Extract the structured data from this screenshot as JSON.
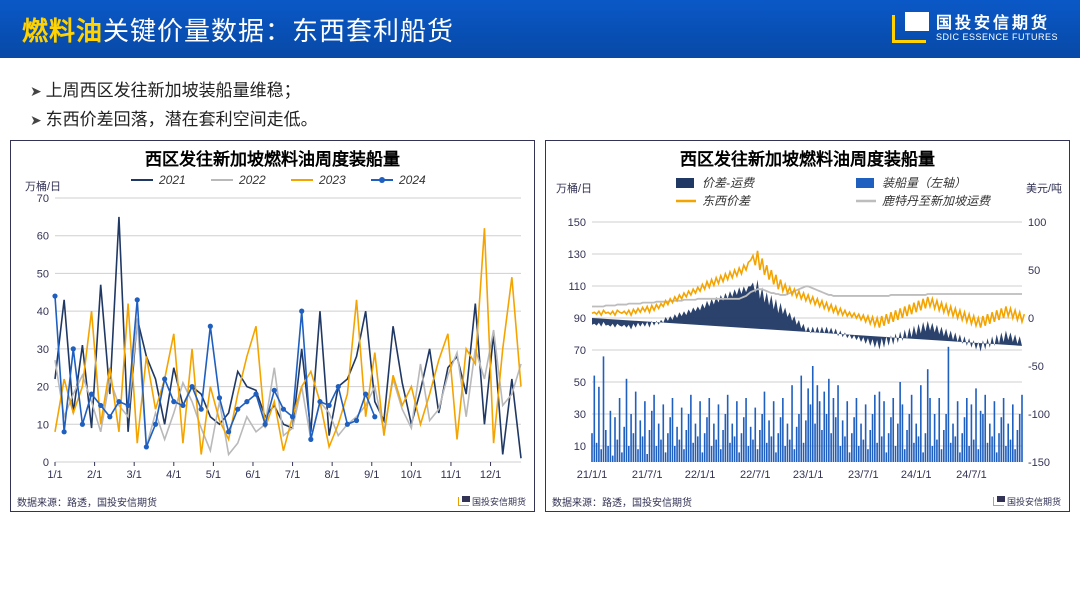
{
  "header": {
    "title_accent": "燃料油",
    "title_rest": "关键价量数据：东西套利船货",
    "logo_cn": "国投安信期货",
    "logo_en": "SDIC ESSENCE FUTURES"
  },
  "bullets": [
    "上周西区发往新加坡装船量维稳；",
    "东西价差回落，潜在套利空间走低。"
  ],
  "chart1": {
    "title": "西区发往新加坡燃料油周度装船量",
    "ylabel": "万桶/日",
    "footer": "数据来源：路透，国投安信期货",
    "wm": "国投安信期货",
    "x_ticks": [
      "1/1",
      "2/1",
      "3/1",
      "4/1",
      "5/1",
      "6/1",
      "7/1",
      "8/1",
      "9/1",
      "10/1",
      "11/1",
      "12/1"
    ],
    "y_min": 0,
    "y_max": 70,
    "y_step": 10,
    "colors": {
      "2021": "#203864",
      "2022": "#b9b9b9",
      "2023": "#f4a400",
      "2024": "#1f5fbf"
    },
    "legend": [
      "2021",
      "2022",
      "2023",
      "2024"
    ],
    "series": {
      "2021": [
        22,
        43,
        13,
        31,
        9,
        47,
        18,
        65,
        8,
        38,
        28,
        22,
        10,
        25,
        15,
        20,
        18,
        12,
        10,
        13,
        24,
        20,
        19,
        12,
        15,
        10,
        9,
        30,
        8,
        40,
        7,
        20,
        22,
        28,
        40,
        16,
        11,
        36,
        21,
        10,
        19,
        30,
        13,
        25,
        28,
        18,
        42,
        10,
        34,
        2,
        22,
        1
      ],
      "2022": [
        27,
        12,
        18,
        23,
        16,
        8,
        22,
        15,
        12,
        38,
        4,
        13,
        6,
        13,
        21,
        16,
        9,
        3,
        16,
        2,
        5,
        12,
        8,
        10,
        25,
        7,
        9,
        20,
        6,
        16,
        13,
        7,
        10,
        12,
        15,
        20,
        8,
        22,
        14,
        9,
        26,
        11,
        14,
        23,
        29,
        12,
        30,
        22,
        35,
        15,
        18,
        26
      ],
      "2023": [
        8,
        22,
        13,
        20,
        40,
        10,
        25,
        8,
        42,
        5,
        28,
        14,
        22,
        34,
        5,
        30,
        2,
        20,
        11,
        6,
        18,
        28,
        36,
        9,
        16,
        3,
        12,
        20,
        24,
        16,
        4,
        10,
        18,
        43,
        12,
        29,
        7,
        23,
        15,
        20,
        10,
        18,
        27,
        34,
        6,
        30,
        26,
        62,
        5,
        30,
        49,
        20
      ],
      "2024": [
        44,
        8,
        30,
        10,
        18,
        15,
        12,
        16,
        15,
        43,
        4,
        10,
        22,
        16,
        15,
        20,
        14,
        36,
        17,
        8,
        14,
        16,
        18,
        10,
        19,
        14,
        12,
        40,
        6,
        16,
        15,
        20,
        10,
        11,
        18,
        12
      ]
    },
    "marker_series": "2024",
    "grid_color": "#cfcfcf",
    "bg": "#ffffff"
  },
  "chart2": {
    "title": "西区发往新加坡燃料油周度装船量",
    "ylabel_left": "万桶/日",
    "ylabel_right": "美元/吨",
    "footer": "数据来源：路透，国投安信期货",
    "wm": "国投安信期货",
    "x_ticks": [
      "21/1/1",
      "21/7/1",
      "22/1/1",
      "22/7/1",
      "23/1/1",
      "23/7/1",
      "24/1/1",
      "24/7/1"
    ],
    "y_left_min": 0,
    "y_left_max": 150,
    "y_left_step": 20,
    "y_left_start": 10,
    "y_right_min": -150,
    "y_right_max": 100,
    "y_right_step": 50,
    "colors": {
      "area": "#203864",
      "bars": "#1f5fbf",
      "spread": "#f4a400",
      "freight": "#bdbdbd"
    },
    "legend": [
      {
        "label": "价差-运费",
        "color": "#203864",
        "type": "area"
      },
      {
        "label": "装船量（左轴）",
        "color": "#1f5fbf",
        "type": "bar"
      },
      {
        "label": "东西价差",
        "color": "#f4a400",
        "type": "line"
      },
      {
        "label": "鹿特丹至新加坡运费",
        "color": "#bdbdbd",
        "type": "line"
      }
    ],
    "bars": [
      18,
      54,
      12,
      47,
      8,
      66,
      20,
      10,
      32,
      4,
      28,
      14,
      40,
      6,
      22,
      52,
      10,
      30,
      18,
      44,
      8,
      26,
      16,
      38,
      5,
      20,
      32,
      42,
      10,
      24,
      14,
      36,
      6,
      18,
      28,
      40,
      10,
      22,
      14,
      34,
      8,
      20,
      30,
      42,
      12,
      24,
      16,
      38,
      6,
      18,
      28,
      40,
      10,
      24,
      14,
      36,
      8,
      20,
      30,
      42,
      12,
      24,
      16,
      38,
      6,
      18,
      28,
      40,
      10,
      22,
      14,
      34,
      8,
      20,
      30,
      44,
      12,
      26,
      16,
      38,
      6,
      18,
      28,
      40,
      10,
      24,
      14,
      48,
      8,
      22,
      30,
      54,
      12,
      26,
      46,
      36,
      60,
      24,
      48,
      38,
      20,
      44,
      30,
      52,
      18,
      40,
      28,
      48,
      10,
      26,
      16,
      38,
      6,
      18,
      28,
      40,
      10,
      24,
      14,
      36,
      8,
      20,
      30,
      42,
      12,
      44,
      16,
      38,
      6,
      18,
      28,
      40,
      10,
      24,
      50,
      36,
      8,
      20,
      30,
      42,
      12,
      24,
      16,
      48,
      6,
      18,
      58,
      40,
      10,
      30,
      14,
      40,
      8,
      20,
      30,
      72,
      12,
      24,
      16,
      38,
      6,
      18,
      28,
      40,
      10,
      36,
      14,
      46,
      8,
      32,
      30,
      42,
      12,
      24,
      16,
      38,
      6,
      18,
      28,
      40,
      10,
      24,
      14,
      36,
      8,
      20,
      30,
      42
    ],
    "freight": [
      12,
      12,
      12,
      12,
      12,
      12,
      13,
      13,
      13,
      13,
      13,
      14,
      14,
      14,
      14,
      14,
      15,
      15,
      15,
      15,
      15,
      15,
      16,
      16,
      16,
      16,
      16,
      16,
      17,
      17,
      17,
      17,
      17,
      17,
      18,
      18,
      18,
      18,
      18,
      18,
      19,
      19,
      19,
      19,
      19,
      19,
      20,
      20,
      20,
      20,
      20,
      20,
      20,
      20,
      20,
      20,
      20,
      20,
      20,
      20,
      20,
      20,
      20,
      20,
      20,
      21,
      22,
      23,
      25,
      27,
      28,
      29,
      30,
      30,
      30,
      29,
      28,
      27,
      26,
      26,
      25,
      25,
      24,
      24,
      24,
      25,
      26,
      27,
      28,
      29,
      30,
      31,
      32,
      33,
      33,
      32,
      31,
      30,
      29,
      28,
      27,
      26,
      25,
      24,
      24,
      23,
      23,
      23,
      23,
      23,
      23,
      23,
      23,
      23,
      23,
      23,
      23,
      23,
      23,
      23,
      23,
      23,
      23,
      23,
      23,
      23,
      23,
      23,
      23,
      23,
      24,
      24,
      24,
      24,
      24,
      24,
      24,
      24,
      24,
      24,
      24,
      24,
      24,
      24,
      24,
      24,
      25,
      25,
      25,
      25,
      25,
      25,
      25,
      25,
      25,
      25,
      25,
      25,
      25,
      25,
      25,
      25,
      25,
      25,
      25,
      25,
      25,
      25,
      25,
      25,
      25,
      25,
      25,
      25,
      25,
      25,
      25,
      25,
      25,
      25,
      25,
      25,
      25,
      25,
      25,
      25,
      25,
      25
    ],
    "spread": [
      5,
      6,
      4,
      7,
      3,
      8,
      5,
      6,
      4,
      7,
      3,
      8,
      6,
      5,
      7,
      4,
      8,
      3,
      9,
      5,
      10,
      6,
      11,
      7,
      12,
      6,
      13,
      8,
      14,
      10,
      15,
      12,
      18,
      14,
      20,
      16,
      22,
      18,
      24,
      20,
      26,
      22,
      28,
      24,
      30,
      26,
      32,
      28,
      35,
      30,
      38,
      32,
      40,
      34,
      42,
      36,
      44,
      38,
      46,
      40,
      48,
      42,
      50,
      44,
      52,
      46,
      55,
      50,
      58,
      60,
      65,
      55,
      70,
      50,
      62,
      45,
      55,
      40,
      50,
      35,
      45,
      30,
      40,
      28,
      35,
      26,
      32,
      24,
      30,
      22,
      28,
      20,
      26,
      18,
      24,
      16,
      22,
      14,
      20,
      12,
      18,
      10,
      16,
      8,
      14,
      6,
      12,
      4,
      10,
      3,
      8,
      2,
      6,
      1,
      5,
      0,
      4,
      -2,
      3,
      -4,
      2,
      -6,
      1,
      -8,
      0,
      -10,
      2,
      -8,
      4,
      -6,
      6,
      -4,
      8,
      -2,
      10,
      0,
      12,
      2,
      14,
      4,
      16,
      6,
      18,
      8,
      20,
      10,
      22,
      12,
      20,
      10,
      18,
      8,
      16,
      6,
      14,
      4,
      12,
      2,
      10,
      0,
      8,
      -2,
      6,
      -4,
      4,
      -6,
      2,
      -8,
      0,
      -10,
      2,
      -8,
      4,
      -6,
      6,
      -4,
      8,
      -2,
      10,
      0,
      12,
      2,
      10,
      0,
      8,
      -2,
      6,
      -4,
      4
    ],
    "grid_color": "#cfcfcf"
  }
}
